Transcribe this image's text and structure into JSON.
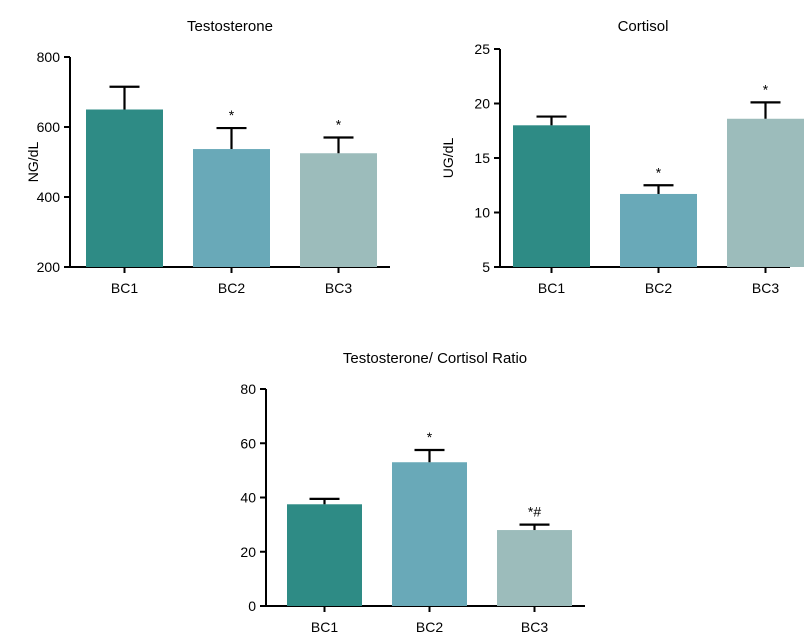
{
  "colors": {
    "BC1": "#2e8b85",
    "BC2": "#69a9b8",
    "BC3": "#9cbcbb",
    "axis": "#000000"
  },
  "chart_data": [
    {
      "type": "bar",
      "title": "Testosterone",
      "xlabel": "",
      "ylabel": "NG/dL",
      "categories": [
        "BC1",
        "BC2",
        "BC3"
      ],
      "values": [
        650,
        537,
        525
      ],
      "errors": [
        65,
        60,
        45
      ],
      "annotations": [
        "",
        "*",
        "*"
      ],
      "ylim": [
        200,
        800
      ],
      "yticks": [
        200,
        400,
        600,
        800
      ],
      "grid": false
    },
    {
      "type": "bar",
      "title": "Cortisol",
      "xlabel": "",
      "ylabel": "UG/dL",
      "categories": [
        "BC1",
        "BC2",
        "BC3"
      ],
      "values": [
        18,
        11.7,
        18.6
      ],
      "errors": [
        0.8,
        0.8,
        1.5
      ],
      "annotations": [
        "",
        "*",
        "*"
      ],
      "ylim": [
        5,
        25
      ],
      "yticks": [
        5,
        10,
        15,
        20,
        25
      ],
      "grid": false
    },
    {
      "type": "bar",
      "title": "Testosterone/ Cortisol Ratio",
      "xlabel": "",
      "ylabel": "",
      "categories": [
        "BC1",
        "BC2",
        "BC3"
      ],
      "values": [
        37.5,
        53,
        28
      ],
      "errors": [
        2,
        4.5,
        2
      ],
      "annotations": [
        "",
        "*",
        "*#"
      ],
      "ylim": [
        0,
        80
      ],
      "yticks": [
        0,
        20,
        40,
        60,
        80
      ],
      "grid": false
    }
  ]
}
